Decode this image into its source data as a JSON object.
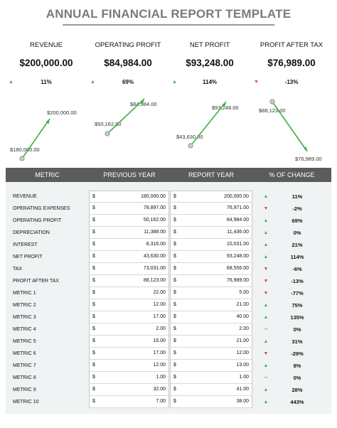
{
  "title": "ANNUAL FINANCIAL REPORT TEMPLATE",
  "colors": {
    "up": "#45b24a",
    "down": "#e0453a",
    "flat": "#f0a030",
    "line": "#3cb043",
    "header_bg": "#5c5c5c"
  },
  "kpis": [
    {
      "label": "REVENUE",
      "value": "$200,000.00",
      "trend": "up",
      "change": "11%",
      "prev_label": "$180,000.00",
      "curr_label": "$200,000.00"
    },
    {
      "label": "OPERATING PROFIT",
      "value": "$84,984.00",
      "trend": "up",
      "change": "69%",
      "prev_label": "$50,162.00",
      "curr_label": "$84,984.00"
    },
    {
      "label": "NET PROFIT",
      "value": "$93,248.00",
      "trend": "up",
      "change": "114%",
      "prev_label": "$43,630.00",
      "curr_label": "$93,248.00"
    },
    {
      "label": "PROFIT AFTER TAX",
      "value": "$76,989.00",
      "trend": "down",
      "change": "-13%",
      "prev_label": "$88,123.00",
      "curr_label": "$76,989.00"
    }
  ],
  "table": {
    "headers": {
      "metric": "METRIC",
      "prev": "PREVIOUS YEAR",
      "report": "REPORT YEAR",
      "change": "% OF CHANGE"
    },
    "currency": "$",
    "rows": [
      {
        "metric": "REVENUE",
        "prev": "180,000.00",
        "report": "200,000.00",
        "trend": "up",
        "change": "11%"
      },
      {
        "metric": "OPERATING EXPENSES",
        "prev": "78,897.00",
        "report": "76,971.00",
        "trend": "down",
        "change": "-2%"
      },
      {
        "metric": "OPERATING PROFIT",
        "prev": "50,162.00",
        "report": "84,984.00",
        "trend": "up",
        "change": "69%"
      },
      {
        "metric": "DEPRECIATION",
        "prev": "11,388.00",
        "report": "11,436.00",
        "trend": "up",
        "change": "0%"
      },
      {
        "metric": "INTEREST",
        "prev": "8,316.00",
        "report": "10,031.00",
        "trend": "up",
        "change": "21%"
      },
      {
        "metric": "NET PROFIT",
        "prev": "43,630.00",
        "report": "93,248.00",
        "trend": "up",
        "change": "114%"
      },
      {
        "metric": "TAX",
        "prev": "73,031.00",
        "report": "68,556.00",
        "trend": "down",
        "change": "-6%"
      },
      {
        "metric": "PROFIT AFTER TAX",
        "prev": "88,123.00",
        "report": "76,989.00",
        "trend": "down",
        "change": "-13%"
      },
      {
        "metric": "METRIC 1",
        "prev": "22.00",
        "report": "5.00",
        "trend": "down",
        "change": "-77%"
      },
      {
        "metric": "METRIC 2",
        "prev": "12.00",
        "report": "21.00",
        "trend": "up",
        "change": "75%"
      },
      {
        "metric": "METRIC 3",
        "prev": "17.00",
        "report": "40.00",
        "trend": "up",
        "change": "135%"
      },
      {
        "metric": "METRIC 4",
        "prev": "2.00",
        "report": "2.00",
        "trend": "flat",
        "change": "0%"
      },
      {
        "metric": "METRIC 5",
        "prev": "16.00",
        "report": "21.00",
        "trend": "up",
        "change": "31%"
      },
      {
        "metric": "METRIC 6",
        "prev": "17.00",
        "report": "12.00",
        "trend": "down",
        "change": "-29%"
      },
      {
        "metric": "METRIC 7",
        "prev": "12.00",
        "report": "13.00",
        "trend": "up",
        "change": "8%"
      },
      {
        "metric": "METRIC 8",
        "prev": "1.00",
        "report": "1.00",
        "trend": "flat",
        "change": "0%"
      },
      {
        "metric": "METRIC 9",
        "prev": "32.00",
        "report": "41.00",
        "trend": "up",
        "change": "28%"
      },
      {
        "metric": "METRIC 10",
        "prev": "7.00",
        "report": "38.00",
        "trend": "up",
        "change": "443%"
      }
    ]
  }
}
